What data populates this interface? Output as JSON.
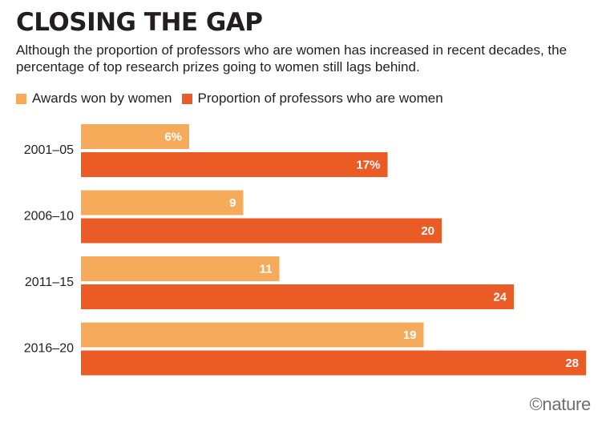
{
  "title": "CLOSING THE GAP",
  "subtitle": "Although the proportion of professors who are women has increased in recent decades, the percentage of top research prizes going to women still lags behind.",
  "credit": "©nature",
  "colors": {
    "awards": "#f6ab5b",
    "professors": "#eb5b26"
  },
  "chart_data": {
    "type": "bar",
    "orientation": "horizontal",
    "categories": [
      "2001–05",
      "2006–10",
      "2011–15",
      "2016–20"
    ],
    "series": [
      {
        "name": "Awards won by women",
        "values": [
          6,
          9,
          11,
          19
        ],
        "labels": [
          "6%",
          "9",
          "11",
          "19"
        ]
      },
      {
        "name": "Proportion of professors who are women",
        "values": [
          17,
          20,
          24,
          28
        ],
        "labels": [
          "17%",
          "20",
          "24",
          "28"
        ]
      }
    ],
    "xlim": [
      0,
      28
    ],
    "legend": "top-left",
    "grid": false
  }
}
